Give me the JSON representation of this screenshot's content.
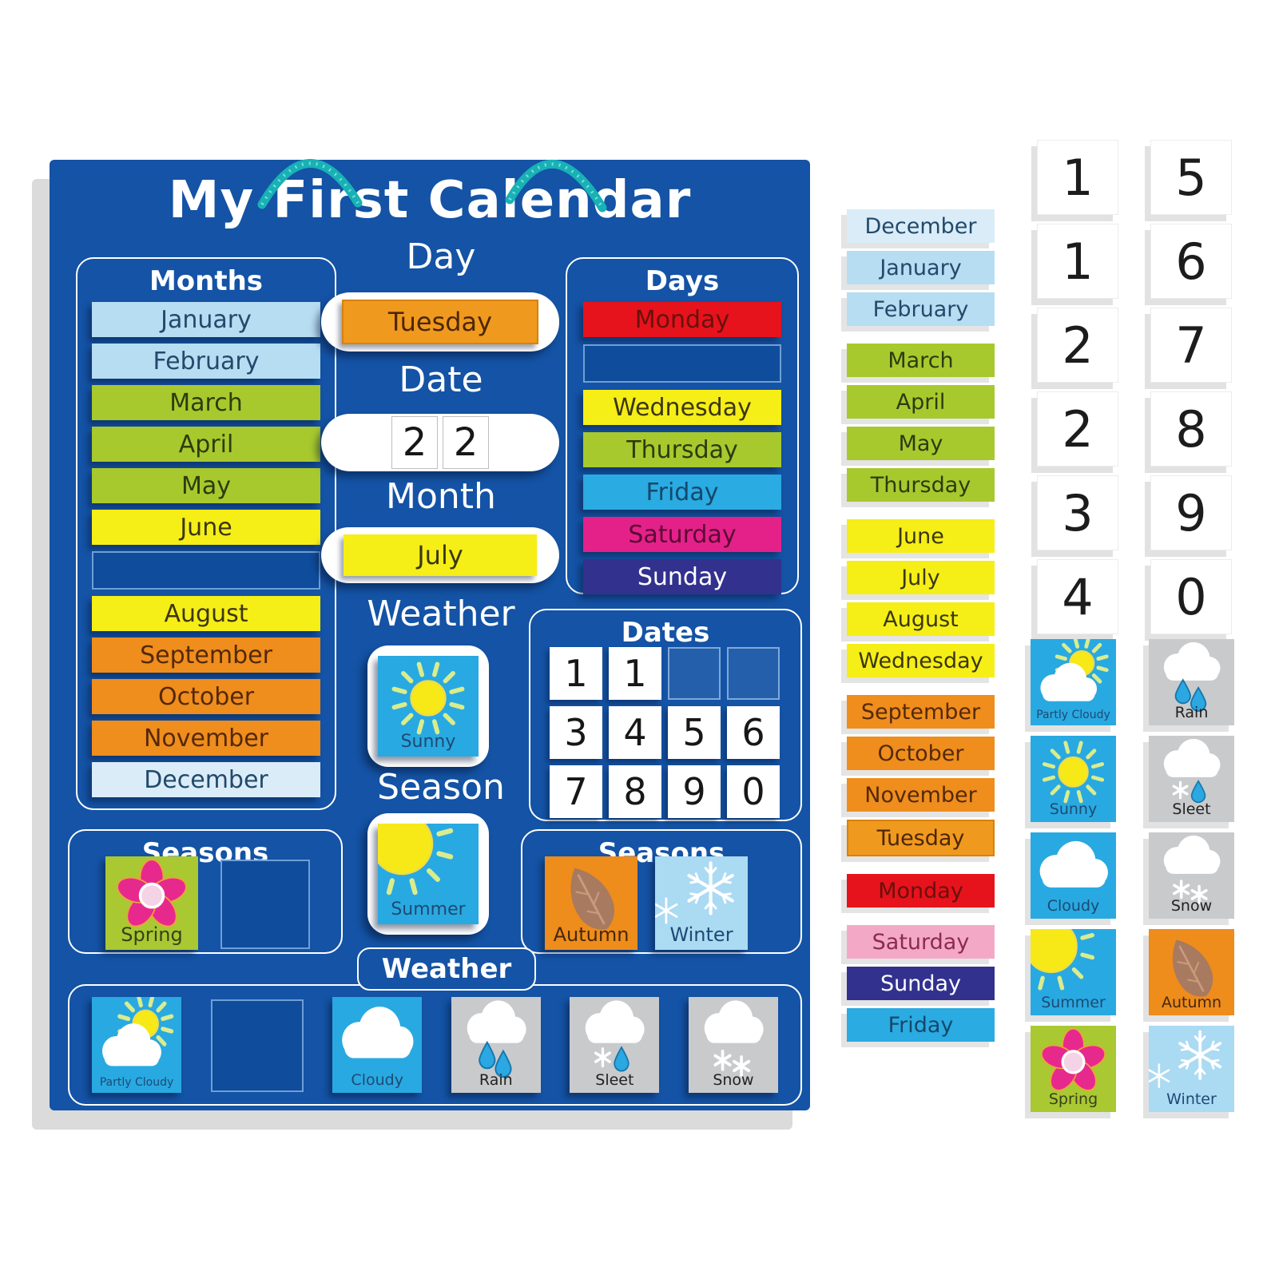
{
  "board": {
    "title": "My First Calendar",
    "months": {
      "heading": "Months",
      "tiles": [
        {
          "label": "January",
          "color": "lightblue"
        },
        {
          "label": "February",
          "color": "lightblue"
        },
        {
          "label": "March",
          "color": "green"
        },
        {
          "label": "April",
          "color": "green"
        },
        {
          "label": "May",
          "color": "green"
        },
        {
          "label": "June",
          "color": "yellow"
        },
        {
          "empty": true
        },
        {
          "label": "August",
          "color": "yellow"
        },
        {
          "label": "September",
          "color": "orange"
        },
        {
          "label": "October",
          "color": "orange"
        },
        {
          "label": "November",
          "color": "orange"
        },
        {
          "label": "December",
          "color": "paleblue"
        }
      ]
    },
    "day": {
      "heading": "Day",
      "value": {
        "label": "Tuesday",
        "color": "dayorange"
      }
    },
    "date": {
      "heading": "Date",
      "digits": [
        "2",
        "2"
      ]
    },
    "month": {
      "heading": "Month",
      "value": {
        "label": "July",
        "color": "yellow"
      }
    },
    "weather_current": {
      "heading": "Weather",
      "tile": {
        "label": "Sunny",
        "icon": "sunny",
        "color": "cyan"
      }
    },
    "season_current": {
      "heading": "Season",
      "tile": {
        "label": "Summer",
        "icon": "summer",
        "color": "cyan"
      }
    },
    "days": {
      "heading": "Days",
      "tiles": [
        {
          "label": "Monday",
          "color": "red"
        },
        {
          "empty": true
        },
        {
          "label": "Wednesday",
          "color": "yellow"
        },
        {
          "label": "Thursday",
          "color": "green"
        },
        {
          "label": "Friday",
          "color": "cyanday"
        },
        {
          "label": "Saturday",
          "color": "magenta"
        },
        {
          "label": "Sunday",
          "color": "indigo"
        }
      ]
    },
    "dates": {
      "heading": "Dates",
      "cells": [
        "1",
        "1",
        "",
        "",
        "3",
        "4",
        "5",
        "6",
        "7",
        "8",
        "9",
        "0"
      ]
    },
    "seasons_left": {
      "heading": "Seasons",
      "tiles": [
        {
          "label": "Spring",
          "icon": "spring",
          "color": "springgreen"
        },
        {
          "empty": true
        }
      ]
    },
    "seasons_right": {
      "heading": "Seasons",
      "tiles": [
        {
          "label": "Autumn",
          "icon": "autumn",
          "color": "autumnorange"
        },
        {
          "label": "Winter",
          "icon": "winter",
          "color": "iceblue"
        }
      ]
    },
    "weather_row": {
      "heading": "Weather",
      "tiles": [
        {
          "label": "Partly Cloudy",
          "icon": "partly_cloudy",
          "color": "cyan",
          "small": true
        },
        {
          "empty": true
        },
        {
          "label": "Cloudy",
          "icon": "cloudy",
          "color": "cyan"
        },
        {
          "label": "Rain",
          "icon": "rain",
          "color": "gray"
        },
        {
          "label": "Sleet",
          "icon": "sleet",
          "color": "gray"
        },
        {
          "label": "Snow",
          "icon": "snow",
          "color": "gray"
        }
      ]
    }
  },
  "side": {
    "word_tiles": [
      {
        "label": "December",
        "color": "paleblue"
      },
      {
        "label": "January",
        "color": "lightblue"
      },
      {
        "label": "February",
        "color": "lightblue"
      },
      {
        "label": "March",
        "color": "green",
        "gapBefore": true
      },
      {
        "label": "April",
        "color": "green"
      },
      {
        "label": "May",
        "color": "green"
      },
      {
        "label": "Thursday",
        "color": "green"
      },
      {
        "label": "June",
        "color": "yellow",
        "gapBefore": true
      },
      {
        "label": "July",
        "color": "yellow"
      },
      {
        "label": "August",
        "color": "yellow"
      },
      {
        "label": "Wednesday",
        "color": "yellow"
      },
      {
        "label": "September",
        "color": "orange",
        "gapBefore": true
      },
      {
        "label": "October",
        "color": "orange"
      },
      {
        "label": "November",
        "color": "orange"
      },
      {
        "label": "Tuesday",
        "color": "dayorange"
      },
      {
        "label": "Monday",
        "color": "red",
        "gapBefore": true
      },
      {
        "label": "Saturday",
        "color": "pink",
        "gapBefore": true
      },
      {
        "label": "Sunday",
        "color": "indigo"
      },
      {
        "label": "Friday",
        "color": "cyanday"
      }
    ],
    "number_cards": {
      "left": [
        "1",
        "1",
        "2",
        "2",
        "3",
        "4"
      ],
      "right": [
        "5",
        "6",
        "7",
        "8",
        "9",
        "0"
      ]
    },
    "picture_tiles": {
      "left": [
        {
          "label": "Partly Cloudy",
          "icon": "partly_cloudy",
          "color": "cyan",
          "small": true
        },
        {
          "label": "Sunny",
          "icon": "sunny",
          "color": "cyan"
        },
        {
          "label": "Cloudy",
          "icon": "cloudy",
          "color": "cyan"
        },
        {
          "label": "Summer",
          "icon": "summer",
          "color": "cyan"
        },
        {
          "label": "Spring",
          "icon": "spring",
          "color": "springgreen"
        }
      ],
      "right": [
        {
          "label": "Rain",
          "icon": "rain",
          "color": "gray"
        },
        {
          "label": "Sleet",
          "icon": "sleet",
          "color": "gray"
        },
        {
          "label": "Snow",
          "icon": "snow",
          "color": "gray"
        },
        {
          "label": "Autumn",
          "icon": "autumn",
          "color": "autumnorange"
        },
        {
          "label": "Winter",
          "icon": "winter",
          "color": "iceblue"
        }
      ]
    }
  },
  "colors": {
    "board_blue": "#1453a5",
    "cord_teal": "#18b1b5",
    "tile_cyan": "#29a9e1",
    "tile_gray": "#c9cacc",
    "tile_yellow": "#f6ee17",
    "tile_green": "#a7c92d",
    "tile_orange": "#ef8d1d",
    "tile_day_orange": "#f0991f",
    "tile_red": "#e6131c",
    "tile_magenta": "#e32189",
    "tile_pink": "#f3a9c5",
    "tile_indigo": "#33318e",
    "tile_lightblue": "#b7ddf3",
    "tile_paleblue": "#d9ecf8",
    "tile_iceblue": "#abdaf3",
    "shadow_gray": "#e2e2e2"
  }
}
